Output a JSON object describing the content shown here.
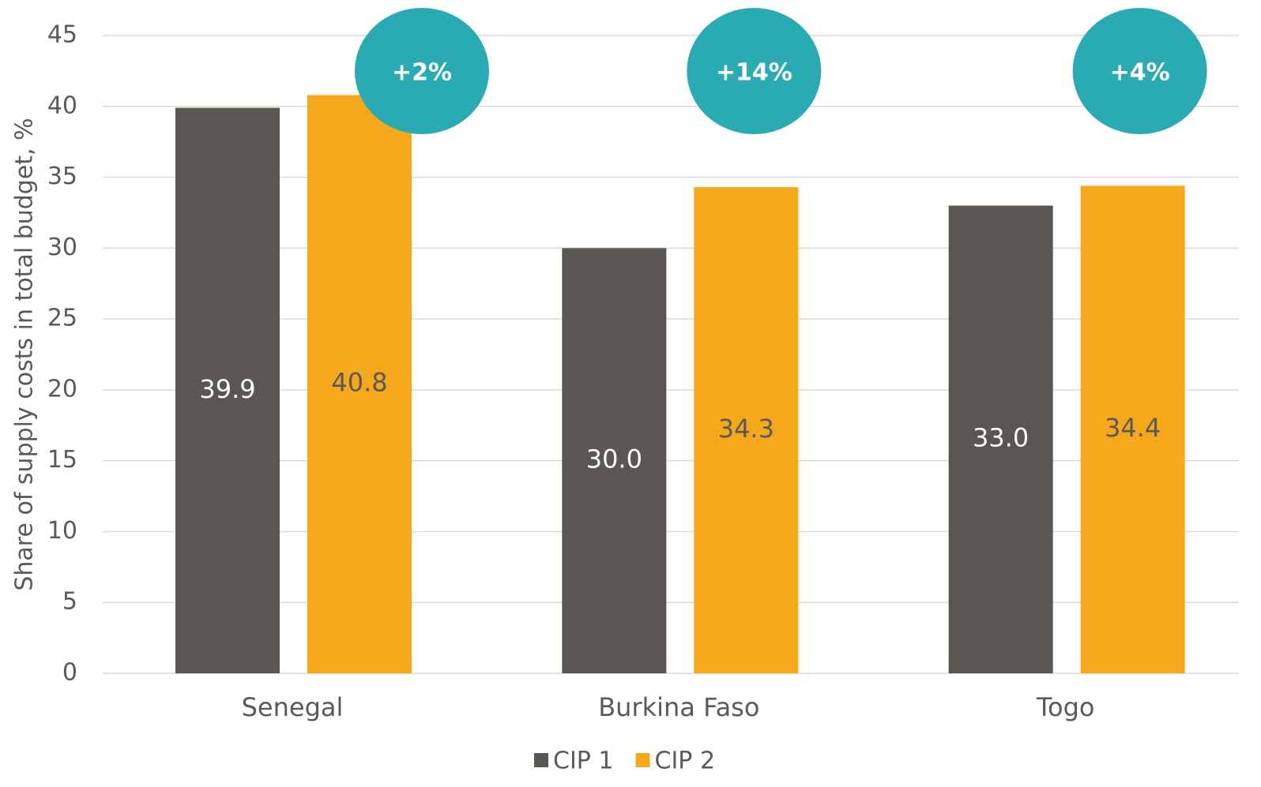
{
  "chart_data": {
    "type": "bar",
    "y_label": "Share of supply costs in total budget, %",
    "categories": [
      "Senegal",
      "Burkina Faso",
      "Togo"
    ],
    "series": [
      {
        "name": "CIP 1",
        "color": "#5a5652",
        "values": [
          39.9,
          30.0,
          33.0
        ],
        "value_labels": [
          "39.9",
          "30.0",
          "33.0"
        ]
      },
      {
        "name": "CIP 2",
        "color": "#f5a81c",
        "values": [
          40.8,
          34.3,
          34.4
        ]
      }
    ],
    "annotations": [
      "+2%",
      "+14%",
      "+4%"
    ],
    "annotation_color": "#2aabb3",
    "ylim": [
      0,
      45
    ],
    "yticks": [
      0,
      5,
      10,
      15,
      20,
      25,
      30,
      35,
      40,
      45
    ],
    "grid": true,
    "legend": "bottom"
  }
}
